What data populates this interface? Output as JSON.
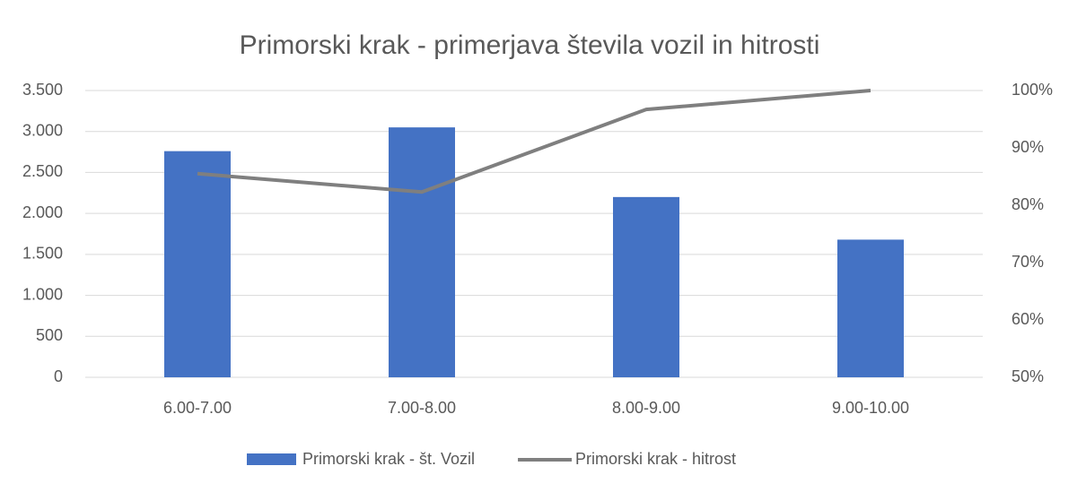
{
  "chart_data": {
    "type": "bar_line",
    "title": "Primorski krak - primerjava števila vozil in hitrosti",
    "categories": [
      "6.00-7.00",
      "7.00-8.00",
      "8.00-9.00",
      "9.00-10.00"
    ],
    "series": [
      {
        "name": "Primorski krak - št. Vozil",
        "type": "bar",
        "color": "#4472c4",
        "values": [
          2760,
          3050,
          2200,
          1680
        ]
      },
      {
        "name": "Primorski krak - hitrost",
        "type": "line",
        "axis": "y2",
        "color": "#7f7f7f",
        "values": [
          85.5,
          82.3,
          96.7,
          100
        ]
      }
    ],
    "ylim": [
      0,
      3500
    ],
    "yticks": [
      0,
      500,
      {
        "value": 1000,
        "label": "1.000"
      },
      {
        "value": 1500,
        "label": "1.500"
      },
      {
        "value": 2000,
        "label": "2.000"
      },
      {
        "value": 2500,
        "label": "2.500"
      },
      {
        "value": 3000,
        "label": "3.000"
      },
      {
        "value": 3500,
        "label": "3.500"
      }
    ],
    "y2lim": [
      50,
      100
    ],
    "y2ticks": [
      {
        "value": 50,
        "label": "50%"
      },
      {
        "value": 60,
        "label": "60%"
      },
      {
        "value": 70,
        "label": "70%"
      },
      {
        "value": 80,
        "label": "80%"
      },
      {
        "value": 90,
        "label": "90%"
      },
      {
        "value": 100,
        "label": "100%"
      }
    ],
    "grid": true,
    "legend": "bottom"
  }
}
